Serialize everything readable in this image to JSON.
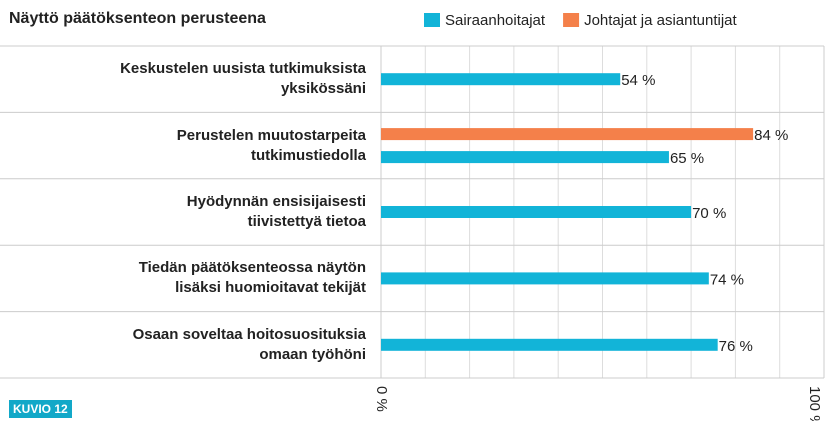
{
  "chart_data": {
    "type": "hbar",
    "title": "Näyttö päätöksenteon perusteena",
    "badge": "KUVIO 12",
    "categories": [
      "Keskustelen uusista tutkimuksista\nyksikössäni",
      "Perustelen muutostarpeita\ntutkimustiedolla",
      "Hyödynnän ensisijaisesti\ntiivistettyä tietoa",
      "Tiedän päätöksenteossa näytön\nlisäksi huomioitavat tekijät",
      "Osaan soveltaa hoitosuosituksia\nomaan työhöni"
    ],
    "series": [
      {
        "name": "Sairaanhoitajat",
        "color": "#12b4d8",
        "values": [
          54,
          65,
          70,
          74,
          76
        ],
        "value_labels": [
          "54 %",
          "65 %",
          "70 %",
          "74 %",
          "76 %"
        ]
      },
      {
        "name": "Johtajat ja asiantuntijat",
        "color": "#f4804a",
        "values": [
          null,
          84,
          null,
          null,
          null
        ],
        "value_labels": [
          null,
          "84 %",
          null,
          null,
          null
        ]
      }
    ],
    "xlim": [
      0,
      100
    ],
    "xticks": [
      {
        "value": 0,
        "label": "0 %"
      },
      {
        "value": 100,
        "label": "100 %"
      }
    ],
    "grid": true
  }
}
